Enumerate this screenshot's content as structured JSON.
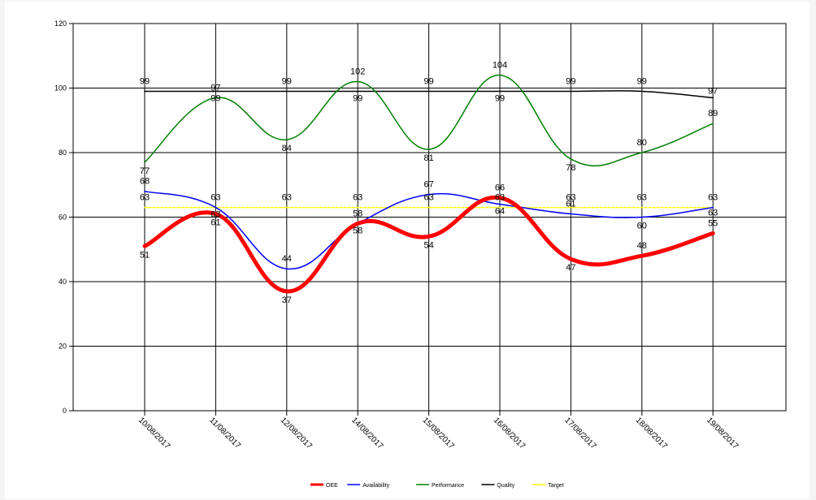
{
  "chart_data": {
    "type": "line",
    "categories": [
      "10/08/2017",
      "11/08/2017",
      "12/08/2017",
      "14/08/2017",
      "15/08/2017",
      "16/08/2017",
      "17/08/2017",
      "18/08/2017",
      "19/08/2017"
    ],
    "ylim": [
      0,
      120
    ],
    "yticks": [
      "0",
      "20",
      "40",
      "60",
      "80",
      "100",
      "120"
    ],
    "grid": true,
    "legend_position": "bottom-center",
    "series": [
      {
        "name": "OEE",
        "color": "#ff0000",
        "values": [
          51,
          61,
          37,
          58,
          54,
          66,
          47,
          48,
          55
        ],
        "labels": [
          "51",
          "61",
          "37",
          "58",
          "54",
          "66",
          "47",
          "48",
          "55"
        ]
      },
      {
        "name": "Availability",
        "color": "#0000ff",
        "values": [
          68,
          63,
          44,
          58,
          67,
          64,
          61,
          60,
          63
        ],
        "labels": [
          "68",
          "63",
          "44",
          "58",
          "67",
          "64",
          "61",
          "60",
          "63"
        ]
      },
      {
        "name": "Performance",
        "color": "#008000",
        "values": [
          77,
          97,
          84,
          102,
          81,
          104,
          78,
          80,
          89
        ],
        "labels": [
          "77",
          "97",
          "84",
          "102",
          "81",
          "104",
          "78",
          "80",
          "89"
        ]
      },
      {
        "name": "Quality",
        "color": "#000000",
        "values": [
          99,
          99,
          99,
          99,
          99,
          99,
          99,
          99,
          97
        ],
        "labels": [
          "99",
          "99",
          "99",
          "99",
          "99",
          "99",
          "99",
          "99",
          "97"
        ]
      },
      {
        "name": "Target",
        "color": "#ffff00",
        "values": [
          63,
          63,
          63,
          63,
          63,
          63,
          63,
          63,
          63
        ],
        "labels": [
          "63",
          "63",
          "63",
          "63",
          "63",
          "63",
          "63",
          "63",
          "63"
        ]
      }
    ]
  }
}
